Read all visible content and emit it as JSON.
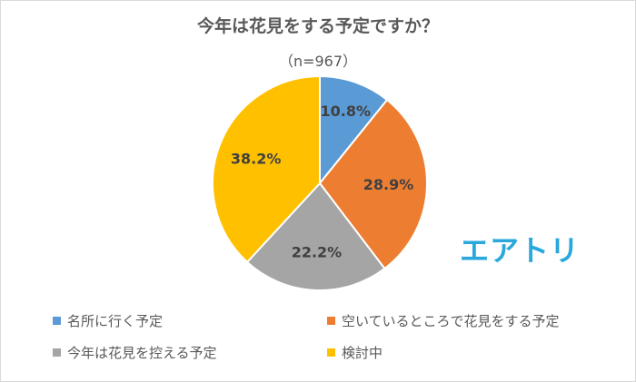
{
  "title": "今年は花見をする予定ですか？",
  "subtitle": "（n=967）",
  "logo_text": "エアトリ",
  "chart_data": {
    "type": "pie",
    "title": "今年は花見をする予定ですか？",
    "subtitle": "（n=967）",
    "categories": [
      "名所に行く予定",
      "空いているところで花見をする予定",
      "今年は花見を控える予定",
      "検討中"
    ],
    "values": [
      10.8,
      28.9,
      22.2,
      38.2
    ],
    "labels": [
      "10.8%",
      "28.9%",
      "22.2%",
      "38.2%"
    ],
    "colors": [
      "#5b9bd5",
      "#ed7d31",
      "#a5a5a5",
      "#ffc000"
    ],
    "legend_position": "bottom"
  }
}
